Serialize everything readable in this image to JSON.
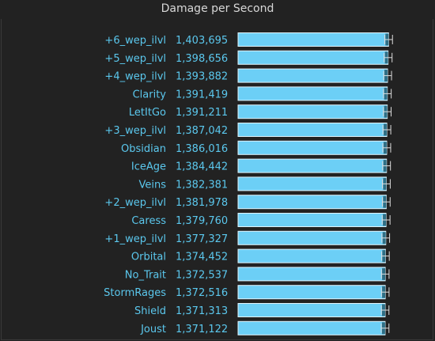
{
  "chart_data": {
    "type": "bar",
    "orientation": "horizontal",
    "title": "Damage per Second",
    "xlabel": "",
    "ylabel": "",
    "grid": false,
    "legend": "none",
    "categories": [
      "+6_wep_ilvl",
      "+5_wep_ilvl",
      "+4_wep_ilvl",
      "Clarity",
      "LetItGo",
      "+3_wep_ilvl",
      "Obsidian",
      "IceAge",
      "Veins",
      "+2_wep_ilvl",
      "Caress",
      "+1_wep_ilvl",
      "Orbital",
      "No_Trait",
      "StormRages",
      "Shield",
      "Joust"
    ],
    "value_labels": [
      "1,403,695",
      "1,398,656",
      "1,393,882",
      "1,391,419",
      "1,391,211",
      "1,387,042",
      "1,386,016",
      "1,384,442",
      "1,382,381",
      "1,381,978",
      "1,379,760",
      "1,377,327",
      "1,374,452",
      "1,372,537",
      "1,372,516",
      "1,371,313",
      "1,371,122"
    ],
    "series": [
      {
        "values": [
          1403695,
          1398656,
          1393882,
          1391419,
          1391211,
          1387042,
          1386016,
          1384442,
          1382381,
          1381978,
          1379760,
          1377327,
          1374452,
          1372537,
          1372516,
          1371313,
          1371122
        ],
        "error_low": [
          1368000,
          1362000,
          1358000,
          1356000,
          1355000,
          1351000,
          1350000,
          1348000,
          1346000,
          1346000,
          1344000,
          1341000,
          1339000,
          1337000,
          1337000,
          1336000,
          1335000
        ],
        "error_high": [
          1440000,
          1436000,
          1431000,
          1428000,
          1427000,
          1424000,
          1423000,
          1421000,
          1419000,
          1418000,
          1417000,
          1413000,
          1410000,
          1408000,
          1408000,
          1407000,
          1407000
        ]
      }
    ],
    "xlim": [
      0,
      1475000
    ],
    "colors": {
      "bar": "#6ccff6",
      "bar_border": "#e0f4fc",
      "error_bar": "#dddddd",
      "label": "#5bc8ee",
      "title": "#d8d8d8",
      "background": "#222222"
    }
  }
}
